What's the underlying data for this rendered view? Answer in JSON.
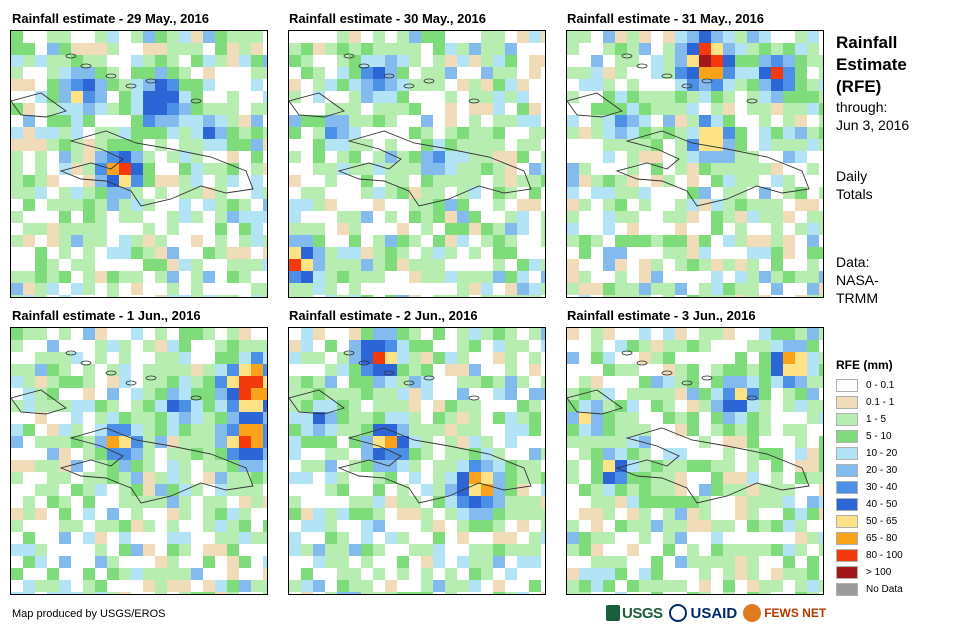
{
  "panels": [
    {
      "title": "Rainfall estimate - 29 May., 2016"
    },
    {
      "title": "Rainfall estimate - 30 May., 2016"
    },
    {
      "title": "Rainfall estimate - 31 May., 2016"
    },
    {
      "title": "Rainfall estimate - 1 Jun., 2016"
    },
    {
      "title": "Rainfall estimate - 2 Jun., 2016"
    },
    {
      "title": "Rainfall estimate - 3 Jun., 2016"
    }
  ],
  "side": {
    "title_lines": [
      "Rainfall",
      "Estimate",
      "(RFE)"
    ],
    "through_lines": [
      "through:",
      "Jun 3, 2016"
    ],
    "daily_lines": [
      "Daily",
      "Totals"
    ],
    "data_lines": [
      "Data:",
      "NASA-",
      "TRMM"
    ]
  },
  "legend": {
    "title": "RFE (mm)",
    "items": [
      {
        "label": "0 - 0.1",
        "color": "#ffffff"
      },
      {
        "label": "0.1 - 1",
        "color": "#f1dcb9"
      },
      {
        "label": "1 - 5",
        "color": "#b7edb0"
      },
      {
        "label": "5 - 10",
        "color": "#7fdc7a"
      },
      {
        "label": "10 - 20",
        "color": "#b2e4f5"
      },
      {
        "label": "20 - 30",
        "color": "#84bbef"
      },
      {
        "label": "30 - 40",
        "color": "#4c8fe6"
      },
      {
        "label": "40 - 50",
        "color": "#2c66d6"
      },
      {
        "label": "50 - 65",
        "color": "#fde386"
      },
      {
        "label": "65 - 80",
        "color": "#f9a21a"
      },
      {
        "label": "80 - 100",
        "color": "#f23a0c"
      },
      {
        "label": "> 100",
        "color": "#a1171a"
      },
      {
        "label": "No Data",
        "color": "#9b9b9b"
      }
    ]
  },
  "credit": "Map produced by USGS/EROS",
  "logos": {
    "usgs": "USGS",
    "usaid": "USAID",
    "fews": "FEWS NET"
  }
}
